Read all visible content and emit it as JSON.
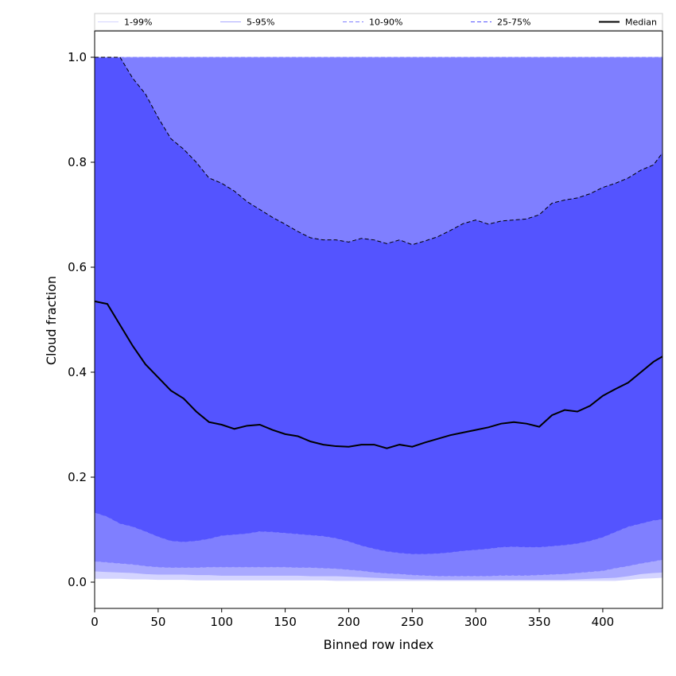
{
  "chart_data": {
    "type": "area",
    "xlabel": "Binned row index",
    "ylabel": "Cloud fraction",
    "xlim": [
      0,
      447
    ],
    "ylim": [
      -0.05,
      1.05
    ],
    "xticks": [
      0,
      50,
      100,
      150,
      200,
      250,
      300,
      350,
      400
    ],
    "yticks": [
      0.0,
      0.2,
      0.4,
      0.6,
      0.8,
      1.0
    ],
    "grid": false,
    "legend_position": "top, spanning full width",
    "x": [
      0,
      10,
      20,
      30,
      40,
      50,
      60,
      70,
      80,
      90,
      100,
      110,
      120,
      130,
      140,
      150,
      160,
      170,
      180,
      190,
      200,
      210,
      220,
      230,
      240,
      250,
      260,
      270,
      280,
      290,
      300,
      310,
      320,
      330,
      340,
      350,
      360,
      370,
      380,
      390,
      400,
      410,
      420,
      430,
      440,
      447
    ],
    "bands": [
      {
        "name": "1-99%",
        "color": "#d4d4ff",
        "line_style": "solid",
        "lower": [
          0.007,
          0.007,
          0.007,
          0.006,
          0.006,
          0.005,
          0.005,
          0.005,
          0.004,
          0.004,
          0.004,
          0.004,
          0.004,
          0.004,
          0.004,
          0.004,
          0.004,
          0.004,
          0.004,
          0.003,
          0.003,
          0.003,
          0.003,
          0.003,
          0.003,
          0.003,
          0.003,
          0.003,
          0.003,
          0.003,
          0.003,
          0.003,
          0.003,
          0.003,
          0.003,
          0.003,
          0.003,
          0.003,
          0.003,
          0.003,
          0.003,
          0.003,
          0.005,
          0.007,
          0.008,
          0.009
        ],
        "upper": [
          1.0,
          1.0,
          1.0,
          1.0,
          1.0,
          1.0,
          1.0,
          1.0,
          1.0,
          1.0,
          1.0,
          1.0,
          1.0,
          1.0,
          1.0,
          1.0,
          1.0,
          1.0,
          1.0,
          1.0,
          1.0,
          1.0,
          1.0,
          1.0,
          1.0,
          1.0,
          1.0,
          1.0,
          1.0,
          1.0,
          1.0,
          1.0,
          1.0,
          1.0,
          1.0,
          1.0,
          1.0,
          1.0,
          1.0,
          1.0,
          1.0,
          1.0,
          1.0,
          1.0,
          1.0,
          1.0
        ]
      },
      {
        "name": "5-95%",
        "color": "#a9a9ff",
        "line_style": "solid",
        "lower": [
          0.021,
          0.02,
          0.019,
          0.018,
          0.016,
          0.015,
          0.015,
          0.015,
          0.014,
          0.014,
          0.013,
          0.013,
          0.013,
          0.013,
          0.013,
          0.013,
          0.013,
          0.012,
          0.012,
          0.012,
          0.011,
          0.01,
          0.009,
          0.008,
          0.007,
          0.006,
          0.006,
          0.005,
          0.005,
          0.005,
          0.005,
          0.005,
          0.005,
          0.005,
          0.005,
          0.005,
          0.005,
          0.005,
          0.006,
          0.007,
          0.008,
          0.009,
          0.012,
          0.016,
          0.018,
          0.019
        ],
        "upper": [
          1.0,
          1.0,
          1.0,
          1.0,
          1.0,
          1.0,
          1.0,
          1.0,
          1.0,
          1.0,
          1.0,
          1.0,
          1.0,
          1.0,
          1.0,
          1.0,
          1.0,
          1.0,
          1.0,
          1.0,
          1.0,
          1.0,
          1.0,
          1.0,
          1.0,
          1.0,
          1.0,
          1.0,
          1.0,
          1.0,
          1.0,
          1.0,
          1.0,
          1.0,
          1.0,
          1.0,
          1.0,
          1.0,
          1.0,
          1.0,
          1.0,
          1.0,
          1.0,
          1.0,
          1.0,
          1.0
        ]
      },
      {
        "name": "10-90%",
        "color": "#7f7fff",
        "line_style": "dashed",
        "lower": [
          0.04,
          0.038,
          0.036,
          0.034,
          0.031,
          0.029,
          0.028,
          0.028,
          0.028,
          0.029,
          0.029,
          0.029,
          0.029,
          0.029,
          0.029,
          0.029,
          0.028,
          0.028,
          0.027,
          0.026,
          0.024,
          0.022,
          0.019,
          0.017,
          0.016,
          0.014,
          0.013,
          0.012,
          0.012,
          0.012,
          0.012,
          0.012,
          0.013,
          0.013,
          0.013,
          0.014,
          0.015,
          0.016,
          0.018,
          0.02,
          0.022,
          0.027,
          0.031,
          0.036,
          0.04,
          0.043
        ],
        "upper": [
          1.0,
          1.0,
          1.0,
          1.0,
          1.0,
          1.0,
          1.0,
          1.0,
          1.0,
          1.0,
          1.0,
          1.0,
          1.0,
          1.0,
          1.0,
          1.0,
          1.0,
          1.0,
          1.0,
          1.0,
          1.0,
          1.0,
          1.0,
          1.0,
          1.0,
          1.0,
          1.0,
          1.0,
          1.0,
          1.0,
          1.0,
          1.0,
          1.0,
          1.0,
          1.0,
          1.0,
          1.0,
          1.0,
          1.0,
          1.0,
          1.0,
          1.0,
          1.0,
          1.0,
          1.0,
          1.0
        ]
      },
      {
        "name": "25-75%",
        "color": "#5454ff",
        "line_style": "dashed",
        "lower": [
          0.133,
          0.125,
          0.112,
          0.106,
          0.097,
          0.087,
          0.079,
          0.077,
          0.079,
          0.083,
          0.089,
          0.091,
          0.093,
          0.097,
          0.096,
          0.094,
          0.092,
          0.09,
          0.088,
          0.084,
          0.078,
          0.07,
          0.064,
          0.059,
          0.056,
          0.054,
          0.054,
          0.055,
          0.057,
          0.06,
          0.062,
          0.064,
          0.067,
          0.068,
          0.067,
          0.067,
          0.069,
          0.071,
          0.074,
          0.079,
          0.086,
          0.096,
          0.106,
          0.112,
          0.118,
          0.12
        ],
        "upper": [
          1.0,
          1.0,
          1.0,
          0.96,
          0.93,
          0.885,
          0.845,
          0.825,
          0.8,
          0.77,
          0.76,
          0.745,
          0.725,
          0.71,
          0.695,
          0.682,
          0.668,
          0.656,
          0.652,
          0.652,
          0.648,
          0.655,
          0.652,
          0.645,
          0.652,
          0.643,
          0.65,
          0.658,
          0.67,
          0.683,
          0.69,
          0.682,
          0.688,
          0.69,
          0.692,
          0.7,
          0.722,
          0.728,
          0.732,
          0.74,
          0.752,
          0.76,
          0.77,
          0.785,
          0.795,
          0.818
        ]
      }
    ],
    "series": [
      {
        "name": "Median",
        "color": "#000000",
        "line_style": "solid",
        "values": [
          0.535,
          0.53,
          0.49,
          0.45,
          0.415,
          0.39,
          0.365,
          0.35,
          0.325,
          0.305,
          0.3,
          0.292,
          0.298,
          0.3,
          0.29,
          0.282,
          0.278,
          0.268,
          0.262,
          0.259,
          0.258,
          0.262,
          0.262,
          0.255,
          0.262,
          0.258,
          0.266,
          0.273,
          0.28,
          0.285,
          0.29,
          0.295,
          0.302,
          0.305,
          0.302,
          0.296,
          0.318,
          0.328,
          0.325,
          0.336,
          0.355,
          0.368,
          0.38,
          0.4,
          0.42,
          0.43
        ]
      }
    ]
  }
}
